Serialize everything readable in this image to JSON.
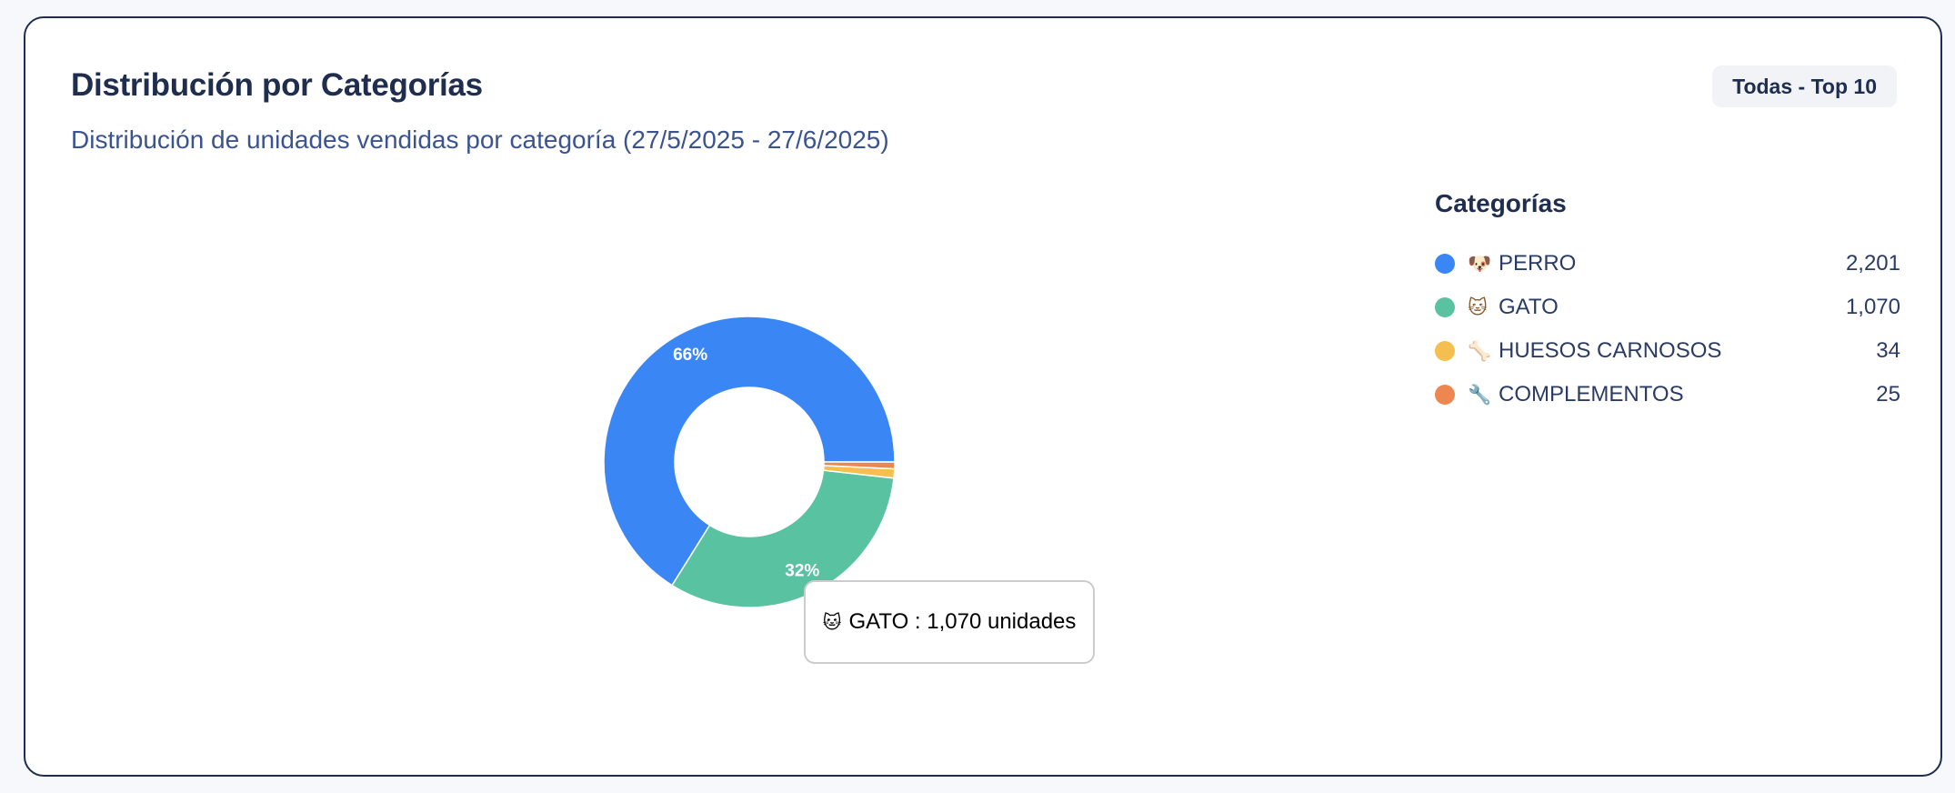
{
  "card": {
    "title": "Distribución por Categorías",
    "subtitle": "Distribución de unidades vendidas por categoría (27/5/2025 - 27/6/2025)",
    "filter_label": "Todas - Top 10"
  },
  "tooltip": {
    "icon": "🐱",
    "text": "GATO : 1,070 unidades"
  },
  "chart_data": {
    "type": "pie",
    "variant": "donut",
    "categories": [
      "PERRO",
      "GATO",
      "HUESOS CARNOSOS",
      "COMPLEMENTOS"
    ],
    "values": [
      2201,
      1070,
      34,
      25
    ],
    "value_labels": [
      "2,201",
      "1,070",
      "34",
      "25"
    ],
    "slice_labels": [
      "66%",
      "32%",
      "",
      ""
    ],
    "colors": [
      "#3b86f5",
      "#59c2a1",
      "#f4bf4f",
      "#ee8650"
    ],
    "icons": [
      "🐶",
      "🐱",
      "🦴",
      "🔧"
    ],
    "legend_title": "Categorías",
    "legend_placement": "right"
  }
}
